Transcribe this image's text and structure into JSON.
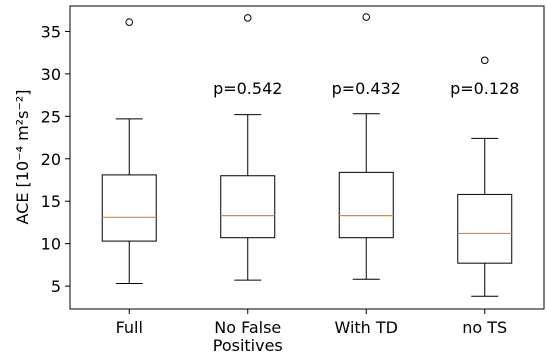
{
  "chart_data": {
    "type": "boxplot",
    "categories": [
      "Full",
      "No False Positives",
      "With TD",
      "no TS"
    ],
    "category_lines": [
      [
        "Full"
      ],
      [
        "No False",
        "Positives"
      ],
      [
        "With TD"
      ],
      [
        "no TS"
      ]
    ],
    "ylabel": "ACE [10⁻⁴ m²s⁻²]",
    "ylim": [
      2.3,
      38
    ],
    "yticks": [
      5,
      10,
      15,
      20,
      25,
      30,
      35
    ],
    "boxes": [
      {
        "name": "Full",
        "whisker_low": 5.3,
        "q1": 10.3,
        "median": 13.1,
        "q3": 18.1,
        "whisker_high": 24.7,
        "outliers": [
          36.1
        ],
        "p_label": ""
      },
      {
        "name": "No False Positives",
        "whisker_low": 5.7,
        "q1": 10.7,
        "median": 13.3,
        "q3": 18.0,
        "whisker_high": 25.2,
        "outliers": [
          36.6
        ],
        "p_label": "p=0.542"
      },
      {
        "name": "With TD",
        "whisker_low": 5.8,
        "q1": 10.7,
        "median": 13.3,
        "q3": 18.4,
        "whisker_high": 25.3,
        "outliers": [
          36.7
        ],
        "p_label": "p=0.432"
      },
      {
        "name": "no TS",
        "whisker_low": 3.8,
        "q1": 7.7,
        "median": 11.2,
        "q3": 15.8,
        "whisker_high": 22.4,
        "outliers": [
          31.6
        ],
        "p_label": "p=0.128"
      }
    ],
    "grid": false,
    "colors": {
      "box": "#000000",
      "median": "#ff7f0e",
      "outlier": "#000000"
    }
  }
}
